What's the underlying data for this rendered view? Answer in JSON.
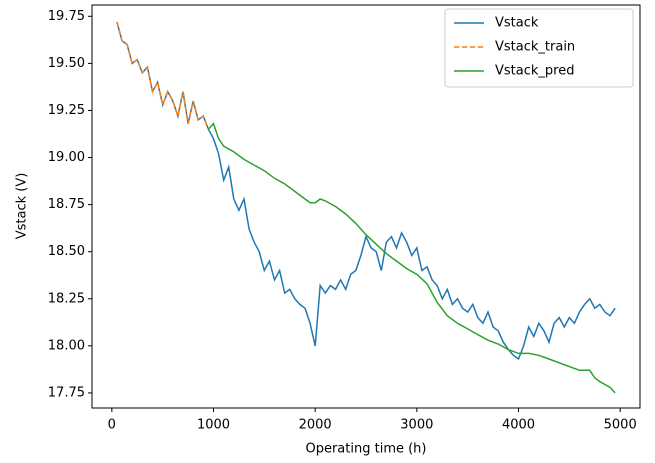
{
  "chart_data": {
    "type": "line",
    "xlabel": "Operating time (h)",
    "ylabel": "Vstack (V)",
    "xlim": [
      -195,
      5195
    ],
    "ylim": [
      17.67,
      19.81
    ],
    "xticks": [
      0,
      1000,
      2000,
      3000,
      4000,
      5000
    ],
    "yticks": [
      17.75,
      {
        "value": 18.0,
        "label": "18.00"
      },
      18.25,
      {
        "value": 18.5,
        "label": "18.50"
      },
      18.75,
      {
        "value": 19.0,
        "label": "19.00"
      },
      19.25,
      {
        "value": 19.5,
        "label": "19.50"
      },
      19.75
    ],
    "legend": "upper right",
    "series": [
      {
        "name": "Vstack",
        "color": "#1f77b4",
        "dash": false,
        "x": [
          50,
          100,
          150,
          200,
          250,
          300,
          350,
          400,
          450,
          500,
          550,
          600,
          650,
          700,
          750,
          800,
          850,
          900,
          950,
          1000,
          1050,
          1100,
          1150,
          1200,
          1250,
          1300,
          1350,
          1400,
          1450,
          1500,
          1550,
          1600,
          1650,
          1700,
          1750,
          1800,
          1850,
          1900,
          1950,
          2000,
          2050,
          2100,
          2150,
          2200,
          2250,
          2300,
          2350,
          2400,
          2450,
          2500,
          2550,
          2600,
          2650,
          2700,
          2750,
          2800,
          2850,
          2900,
          2950,
          3000,
          3050,
          3100,
          3150,
          3200,
          3250,
          3300,
          3350,
          3400,
          3450,
          3500,
          3550,
          3600,
          3650,
          3700,
          3750,
          3800,
          3850,
          3900,
          3950,
          4000,
          4050,
          4100,
          4150,
          4200,
          4250,
          4300,
          4350,
          4400,
          4450,
          4500,
          4550,
          4600,
          4650,
          4700,
          4750,
          4800,
          4850,
          4900,
          4950
        ],
        "values": [
          19.72,
          19.62,
          19.6,
          19.5,
          19.52,
          19.45,
          19.48,
          19.35,
          19.4,
          19.28,
          19.35,
          19.3,
          19.22,
          19.35,
          19.18,
          19.3,
          19.2,
          19.22,
          19.15,
          19.1,
          19.02,
          18.88,
          18.95,
          18.78,
          18.72,
          18.78,
          18.62,
          18.55,
          18.5,
          18.4,
          18.45,
          18.35,
          18.4,
          18.28,
          18.3,
          18.25,
          18.22,
          18.2,
          18.12,
          18.0,
          18.32,
          18.28,
          18.32,
          18.3,
          18.35,
          18.3,
          18.38,
          18.4,
          18.48,
          18.58,
          18.52,
          18.5,
          18.4,
          18.55,
          18.58,
          18.52,
          18.6,
          18.55,
          18.48,
          18.52,
          18.4,
          18.42,
          18.35,
          18.32,
          18.25,
          18.3,
          18.22,
          18.25,
          18.2,
          18.18,
          18.22,
          18.15,
          18.12,
          18.18,
          18.1,
          18.08,
          18.02,
          17.98,
          17.95,
          17.93,
          18.0,
          18.1,
          18.05,
          18.12,
          18.08,
          18.02,
          18.12,
          18.15,
          18.1,
          18.15,
          18.12,
          18.18,
          18.22,
          18.25,
          18.2,
          18.22,
          18.18,
          18.16,
          18.2
        ]
      },
      {
        "name": "Vstack_train",
        "color": "#ff7f0e",
        "dash": true,
        "x": [
          50,
          100,
          150,
          200,
          250,
          300,
          350,
          400,
          450,
          500,
          550,
          600,
          650,
          700,
          750,
          800,
          850,
          900,
          950
        ],
        "values": [
          19.72,
          19.62,
          19.6,
          19.5,
          19.52,
          19.45,
          19.48,
          19.35,
          19.4,
          19.28,
          19.35,
          19.3,
          19.22,
          19.35,
          19.18,
          19.3,
          19.2,
          19.22,
          19.15
        ]
      },
      {
        "name": "Vstack_pred",
        "color": "#2ca02c",
        "dash": false,
        "x": [
          950,
          1000,
          1050,
          1100,
          1200,
          1300,
          1400,
          1500,
          1600,
          1700,
          1800,
          1900,
          1950,
          2000,
          2050,
          2100,
          2200,
          2300,
          2400,
          2500,
          2600,
          2700,
          2800,
          2900,
          3000,
          3100,
          3200,
          3300,
          3400,
          3500,
          3600,
          3700,
          3800,
          3900,
          4000,
          4100,
          4200,
          4300,
          4400,
          4500,
          4600,
          4700,
          4750,
          4800,
          4900,
          4950
        ],
        "values": [
          19.15,
          19.18,
          19.1,
          19.06,
          19.03,
          18.99,
          18.96,
          18.93,
          18.89,
          18.86,
          18.82,
          18.78,
          18.76,
          18.76,
          18.78,
          18.77,
          18.74,
          18.7,
          18.65,
          18.59,
          18.54,
          18.49,
          18.45,
          18.41,
          18.38,
          18.33,
          18.23,
          18.16,
          18.12,
          18.09,
          18.06,
          18.03,
          18.01,
          17.98,
          17.96,
          17.96,
          17.95,
          17.93,
          17.91,
          17.89,
          17.87,
          17.87,
          17.83,
          17.81,
          17.78,
          17.75
        ]
      }
    ]
  }
}
